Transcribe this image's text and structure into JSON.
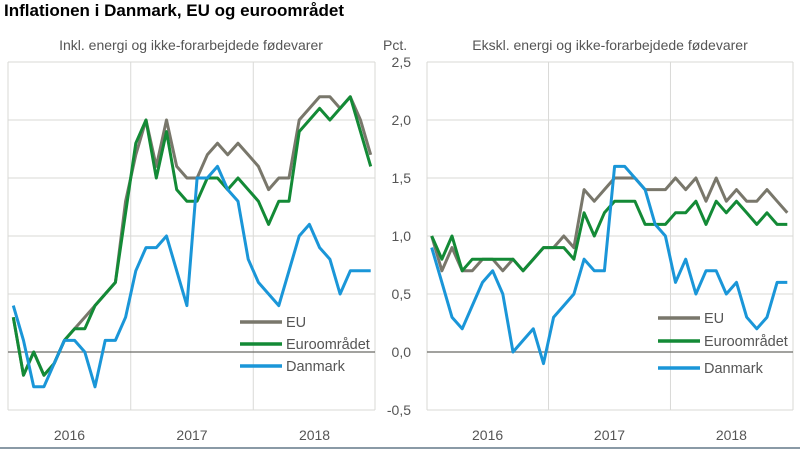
{
  "title": "Inflationen i Danmark, EU og euroområdet",
  "y_unit": "Pct.",
  "colors": {
    "EU": "#79776b",
    "Euroområdet": "#138a36",
    "Danmark": "#1a96d8",
    "grid": "#d9d9d6",
    "zero": "#6b6b66"
  },
  "chart_data": [
    {
      "type": "line",
      "title": "Inkl. energi og ikke-forarbejdede fødevarer",
      "ylim": [
        -0.5,
        2.5
      ],
      "yticks": [
        "-0,5",
        "0,0",
        "0,5",
        "1,0",
        "1,5",
        "2,0",
        "2,5"
      ],
      "xticks": [
        "2016",
        "2017",
        "2018"
      ],
      "grid": true,
      "legend": "bottom-right",
      "series": [
        {
          "name": "EU",
          "values": [
            0.3,
            -0.2,
            0.0,
            -0.2,
            -0.1,
            0.1,
            0.2,
            0.3,
            0.4,
            0.5,
            0.6,
            1.3,
            1.7,
            2.0,
            1.6,
            2.0,
            1.6,
            1.5,
            1.5,
            1.7,
            1.8,
            1.7,
            1.8,
            1.7,
            1.6,
            1.4,
            1.5,
            1.5,
            2.0,
            2.1,
            2.2,
            2.2,
            2.1,
            2.2,
            2.0,
            1.7
          ]
        },
        {
          "name": "Euroområdet",
          "values": [
            0.3,
            -0.2,
            0.0,
            -0.2,
            -0.1,
            0.1,
            0.2,
            0.2,
            0.4,
            0.5,
            0.6,
            1.2,
            1.8,
            2.0,
            1.5,
            1.9,
            1.4,
            1.3,
            1.3,
            1.5,
            1.5,
            1.4,
            1.5,
            1.4,
            1.3,
            1.1,
            1.3,
            1.3,
            1.9,
            2.0,
            2.1,
            2.0,
            2.1,
            2.2,
            1.9,
            1.6
          ]
        },
        {
          "name": "Danmark",
          "values": [
            0.4,
            0.1,
            -0.3,
            -0.3,
            -0.1,
            0.1,
            0.1,
            0.0,
            -0.3,
            0.1,
            0.1,
            0.3,
            0.7,
            0.9,
            0.9,
            1.0,
            0.7,
            0.4,
            1.5,
            1.5,
            1.6,
            1.4,
            1.3,
            0.8,
            0.6,
            0.5,
            0.4,
            0.7,
            1.0,
            1.1,
            0.9,
            0.8,
            0.5,
            0.7,
            0.7,
            0.7
          ]
        }
      ]
    },
    {
      "type": "line",
      "title": "Ekskl. energi og ikke-forarbejdede fødevarer",
      "ylim": [
        -0.5,
        2.5
      ],
      "yticks": [
        "-0,5",
        "0,0",
        "0,5",
        "1,0",
        "1,5",
        "2,0",
        "2,5"
      ],
      "xticks": [
        "2016",
        "2017",
        "2018"
      ],
      "grid": true,
      "legend": "bottom-right",
      "series": [
        {
          "name": "EU",
          "values": [
            1.0,
            0.7,
            0.9,
            0.7,
            0.7,
            0.8,
            0.8,
            0.7,
            0.8,
            0.7,
            0.8,
            0.9,
            0.9,
            1.0,
            0.9,
            1.4,
            1.3,
            1.4,
            1.5,
            1.5,
            1.5,
            1.4,
            1.4,
            1.4,
            1.5,
            1.4,
            1.5,
            1.3,
            1.5,
            1.3,
            1.4,
            1.3,
            1.3,
            1.4,
            1.3,
            1.2
          ]
        },
        {
          "name": "Euroområdet",
          "values": [
            1.0,
            0.8,
            1.0,
            0.7,
            0.8,
            0.8,
            0.8,
            0.8,
            0.8,
            0.7,
            0.8,
            0.9,
            0.9,
            0.9,
            0.8,
            1.2,
            1.0,
            1.2,
            1.3,
            1.3,
            1.3,
            1.1,
            1.1,
            1.1,
            1.2,
            1.2,
            1.3,
            1.1,
            1.3,
            1.2,
            1.3,
            1.2,
            1.1,
            1.2,
            1.1,
            1.1
          ]
        },
        {
          "name": "Danmark",
          "values": [
            0.9,
            0.6,
            0.3,
            0.2,
            0.4,
            0.6,
            0.7,
            0.5,
            0.0,
            0.1,
            0.2,
            -0.1,
            0.3,
            0.4,
            0.5,
            0.8,
            0.7,
            0.7,
            1.6,
            1.6,
            1.5,
            1.4,
            1.1,
            1.0,
            0.6,
            0.8,
            0.5,
            0.7,
            0.7,
            0.5,
            0.6,
            0.3,
            0.2,
            0.3,
            0.6,
            0.6
          ]
        }
      ]
    }
  ]
}
